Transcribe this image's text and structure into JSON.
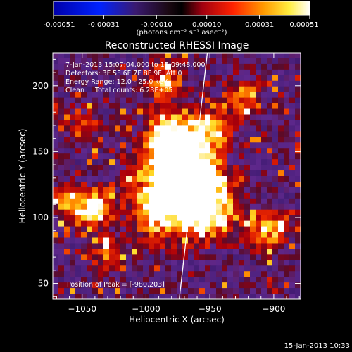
{
  "colorbar": {
    "tick_labels": [
      "-0.00051",
      "-0.00031",
      "-0.00010",
      "0.00010",
      "0.00031",
      "0.00051"
    ],
    "range": [
      -0.00051,
      0.00051
    ],
    "unit_label": "(photons cm⁻² s⁻¹ asec⁻²)"
  },
  "footer": {
    "timestamp": "15-Jan-2013 10:33"
  },
  "chart_data": {
    "type": "heatmap",
    "title": "Reconstructed RHESSI Image",
    "xlabel": "Heliocentric X (arcsec)",
    "ylabel": "Heliocentric Y (arcsec)",
    "xlim": [
      -1073,
      -879
    ],
    "ylim": [
      38,
      225
    ],
    "xticks": [
      -1050,
      -1000,
      -950,
      -900
    ],
    "yticks": [
      50,
      100,
      150,
      200
    ],
    "xtick_labels": [
      "−1050",
      "−1000",
      "−950",
      "−900"
    ],
    "ytick_labels": [
      "50",
      "100",
      "150",
      "200"
    ],
    "annotations": [
      "7-Jan-2013 15:07:04.000 to 15:09:48.000",
      "Detectors: 3F 5F 6F 7F 8F 9F, Att 0",
      "Energy Range: 12.0 - 25.0 keV",
      "Clean     Total counts: 6.23E+05"
    ],
    "peak_label": "Position of Peak = [-980,203]",
    "peak_position": [
      -980,
      203
    ],
    "limb_line": [
      [
        -974,
        38
      ],
      [
        -952,
        225
      ]
    ],
    "source_centers": [
      [
        -980,
        155
      ],
      [
        -962,
        128
      ],
      [
        -982,
        112
      ],
      [
        -950,
        105
      ],
      [
        -1042,
        108
      ]
    ],
    "colormap": "rainbow/heat: dark purple (low) through red, orange, yellow to white (high)",
    "grid": false
  }
}
